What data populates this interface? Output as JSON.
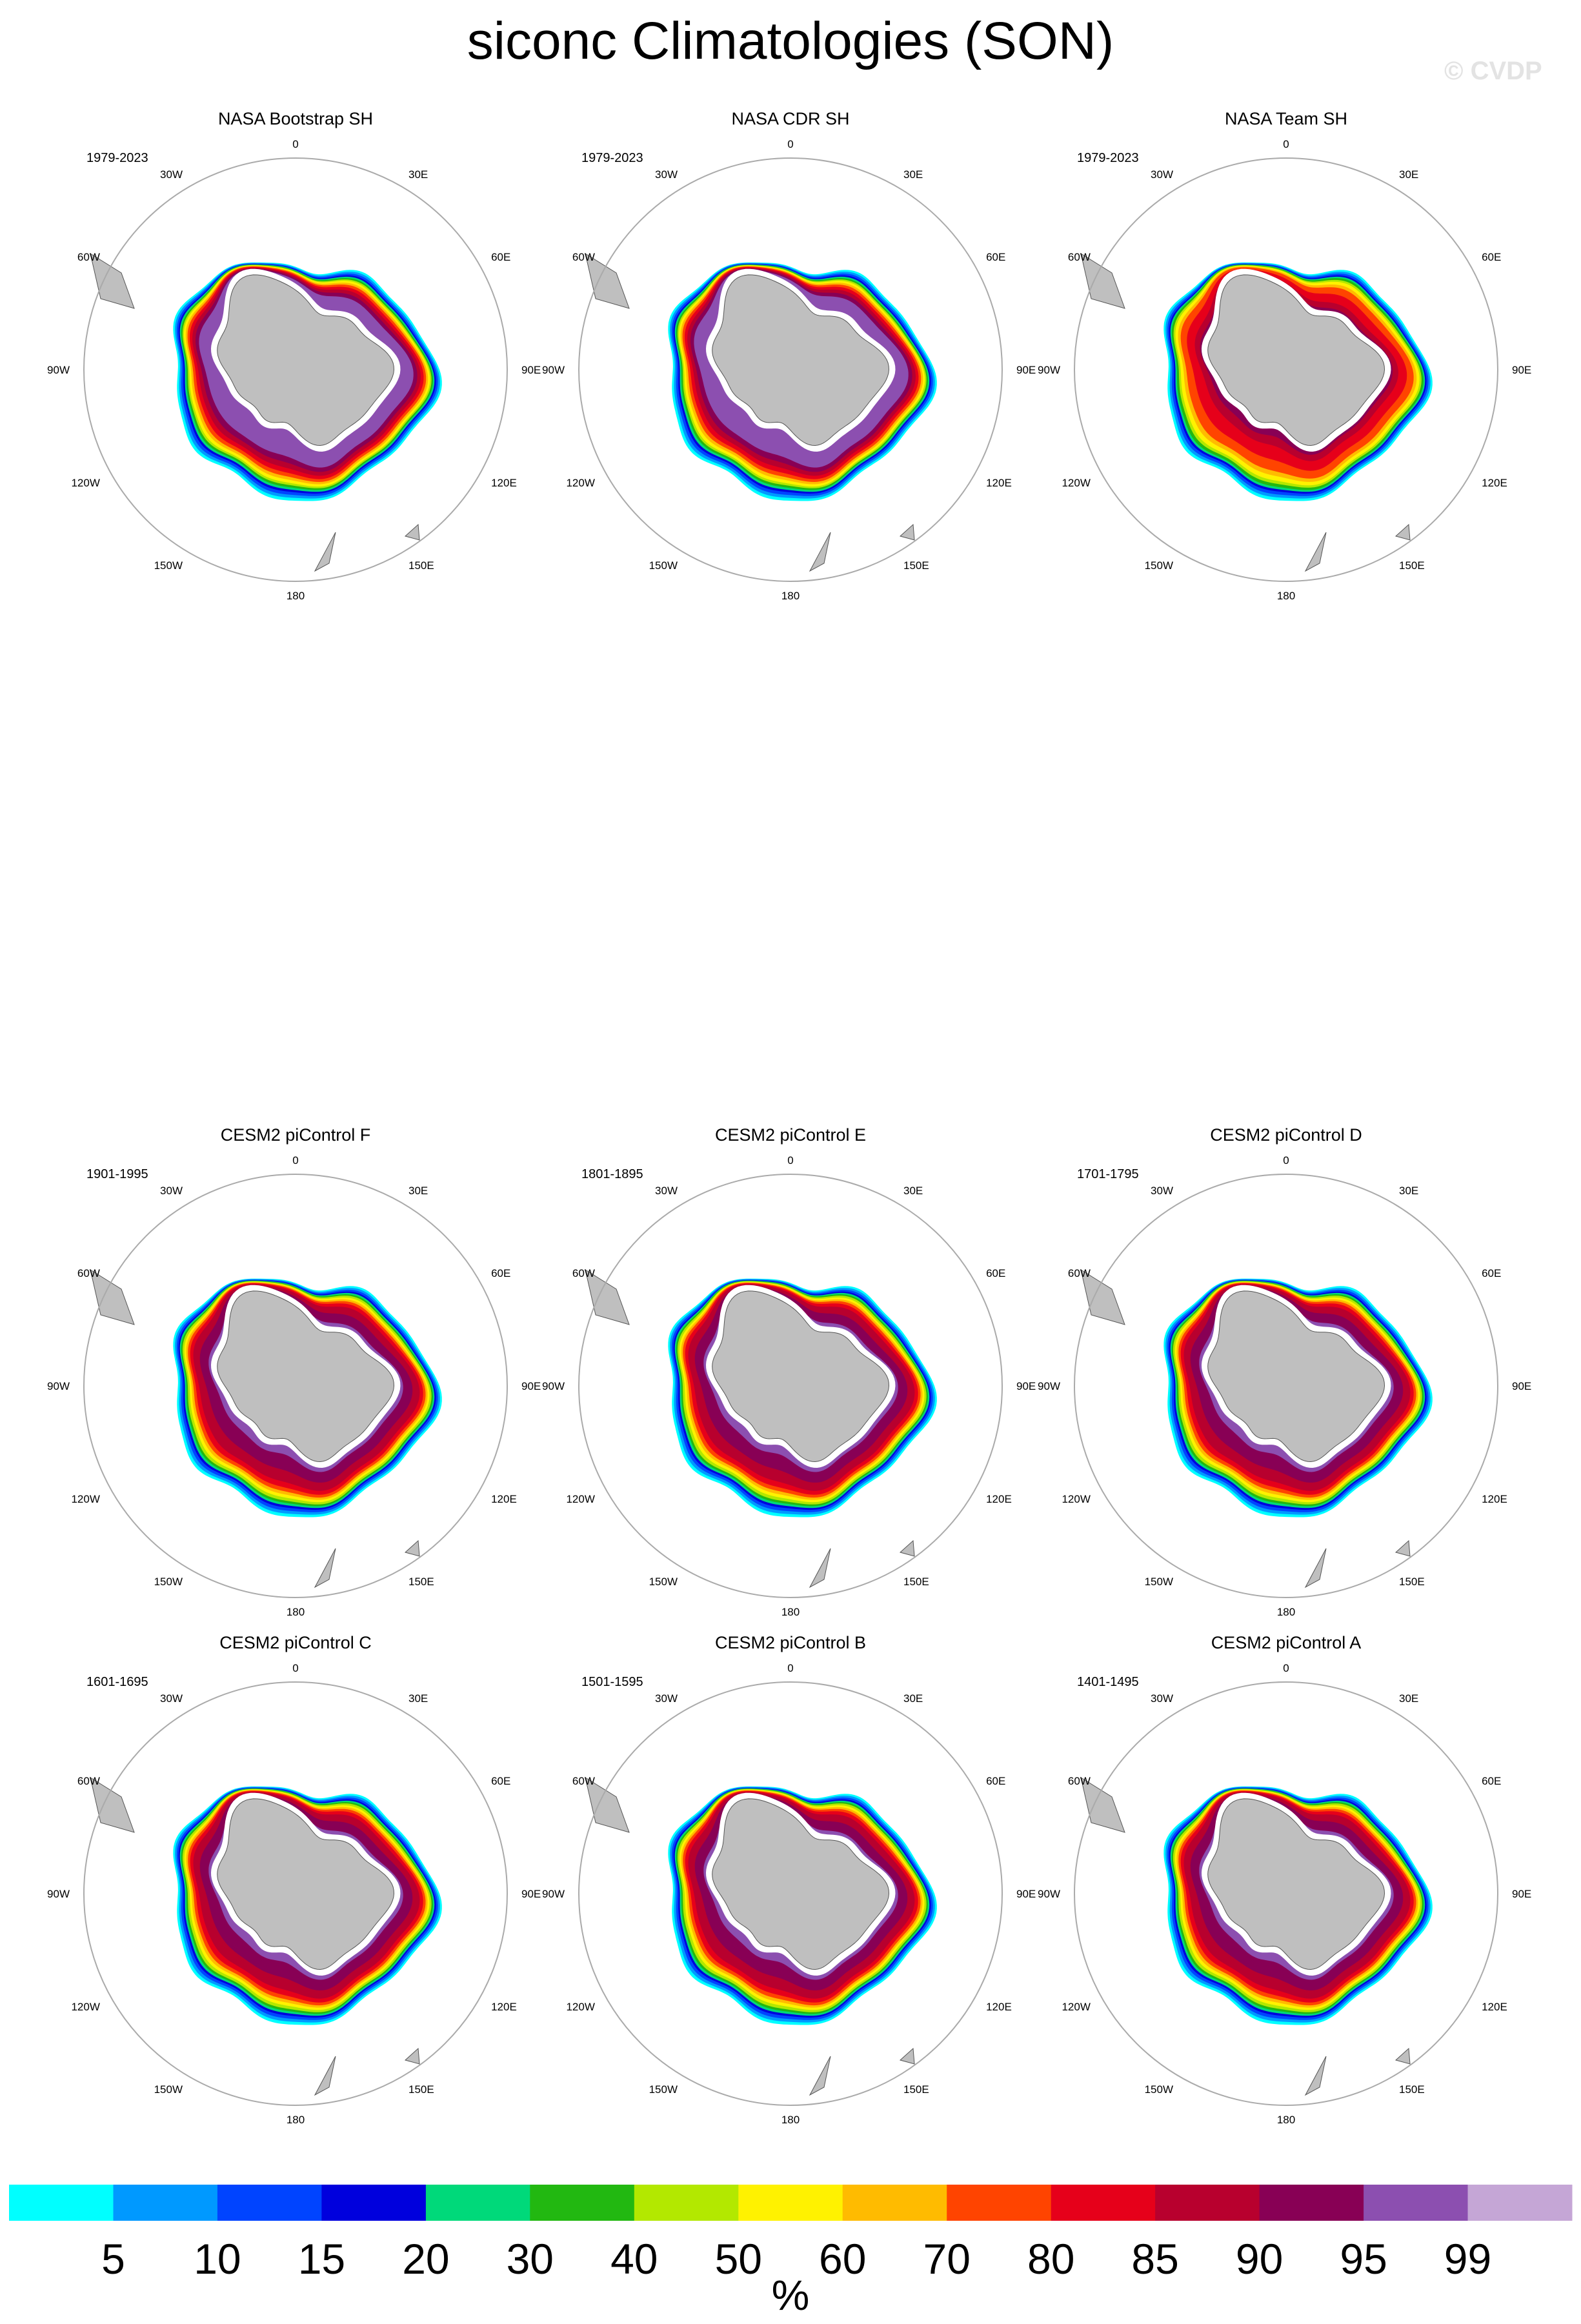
{
  "title": "siconc Climatologies (SON)",
  "watermark": "© CVDP",
  "chart_data": {
    "type": "polar-stereographic filled contour maps",
    "variable": "siconc",
    "season": "SON",
    "hemisphere": "Southern (Antarctic)",
    "longitude_labels": [
      "0",
      "30E",
      "60E",
      "90E",
      "120E",
      "150E",
      "180",
      "150W",
      "120W",
      "90W",
      "60W",
      "30W"
    ],
    "colorbar": {
      "unit": "%",
      "levels": [
        "5",
        "10",
        "15",
        "20",
        "30",
        "40",
        "50",
        "60",
        "70",
        "80",
        "85",
        "90",
        "95",
        "99"
      ],
      "colors": [
        "#00ffff",
        "#0099ff",
        "#0044ff",
        "#0000dd",
        "#00d97a",
        "#22b811",
        "#b3e800",
        "#fff200",
        "#ffbb00",
        "#ff4400",
        "#e6001a",
        "#b8002e",
        "#880055",
        "#8c4fb0",
        "#c5a6d6"
      ]
    },
    "panels": [
      {
        "name": "NASA Bootstrap SH",
        "period": "1979-2023",
        "pattern": "obs-bootstrap"
      },
      {
        "name": "NASA CDR SH",
        "period": "1979-2023",
        "pattern": "obs-bootstrap"
      },
      {
        "name": "NASA Team SH",
        "period": "1979-2023",
        "pattern": "obs-team"
      },
      {
        "name": "CESM2 piControl F",
        "period": "1901-1995",
        "pattern": "model"
      },
      {
        "name": "CESM2 piControl E",
        "period": "1801-1895",
        "pattern": "model"
      },
      {
        "name": "CESM2 piControl D",
        "period": "1701-1795",
        "pattern": "model"
      },
      {
        "name": "CESM2 piControl C",
        "period": "1601-1695",
        "pattern": "model"
      },
      {
        "name": "CESM2 piControl B",
        "period": "1501-1595",
        "pattern": "model"
      },
      {
        "name": "CESM2 piControl A",
        "period": "1401-1495",
        "pattern": "model"
      }
    ]
  }
}
